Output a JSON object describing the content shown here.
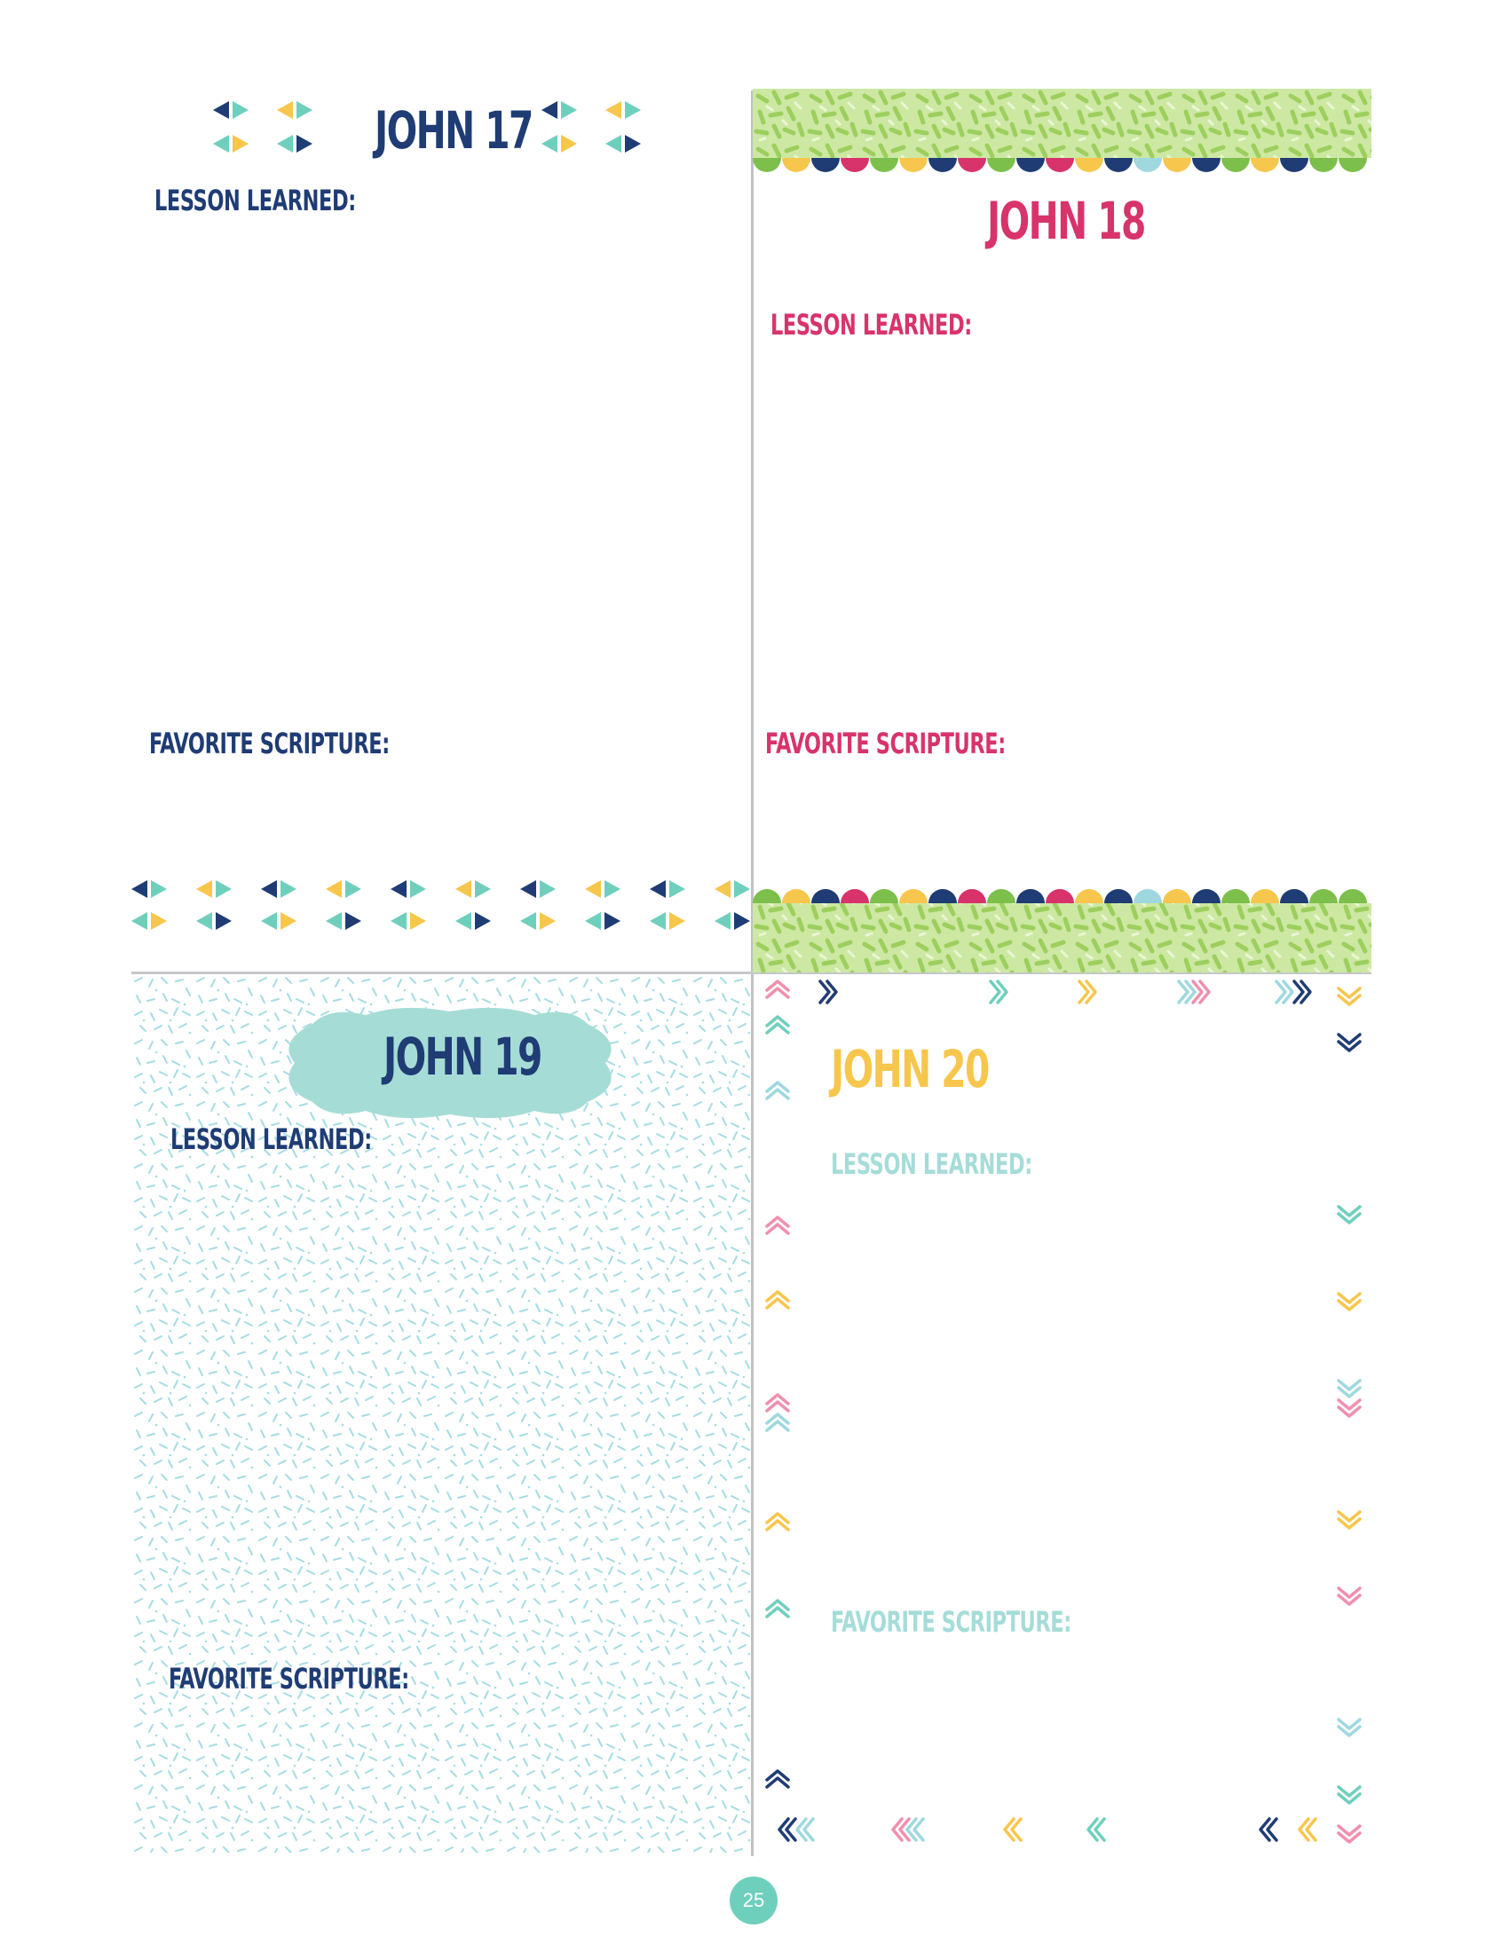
{
  "page_number": "25",
  "colors": {
    "navy": "#1f3c74",
    "teal": "#6fcfbd",
    "yellow": "#f7c64d",
    "magenta": "#d8336a",
    "lime": "#a8d86a",
    "light_blue": "#9fd8df",
    "pink": "#f08fae",
    "green": "#7cc04b"
  },
  "sections": [
    {
      "id": "john-17",
      "title": "JOHN 17",
      "lesson_label": "LESSON LEARNED:",
      "scripture_label": "FAVORITE SCRIPTURE:",
      "accent": "#1f3c74"
    },
    {
      "id": "john-18",
      "title": "JOHN 18",
      "lesson_label": "LESSON LEARNED:",
      "scripture_label": "FAVORITE SCRIPTURE:",
      "accent": "#d8336a"
    },
    {
      "id": "john-19",
      "title": "JOHN 19",
      "lesson_label": "LESSON LEARNED:",
      "scripture_label": "FAVORITE SCRIPTURE:",
      "accent": "#1f3c74"
    },
    {
      "id": "john-20",
      "title": "JOHN 20",
      "lesson_label": "LESSON LEARNED:",
      "scripture_label": "FAVORITE SCRIPTURE:",
      "accent": "#f7c64d",
      "label_color": "#a5dcd9"
    }
  ],
  "decorations": {
    "john17": "triangle-cluster-icon",
    "john18": "confetti-scallop-banner",
    "john19": "cloud-label-badge",
    "john20": "chevron-border"
  }
}
